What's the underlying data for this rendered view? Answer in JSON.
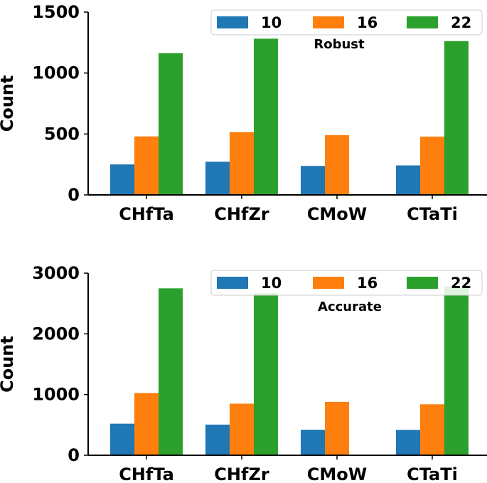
{
  "chart_data": [
    {
      "type": "bar",
      "title": "",
      "annotation": "Robust",
      "categories": [
        "CHfTa",
        "CHfZr",
        "CMoW",
        "CTaTi"
      ],
      "series": [
        {
          "name": "10",
          "color": "#1f77b4",
          "values": [
            250,
            272,
            238,
            242
          ]
        },
        {
          "name": "16",
          "color": "#ff7f0e",
          "values": [
            480,
            515,
            490,
            478
          ]
        },
        {
          "name": "22",
          "color": "#2ca02c",
          "values": [
            1163,
            1282,
            null,
            1262
          ]
        }
      ],
      "xlabel": "",
      "ylabel": "Count",
      "ylim": [
        0,
        1500
      ],
      "yticks": [
        0,
        500,
        1000,
        1500
      ],
      "legend": "top-right",
      "grid": false
    },
    {
      "type": "bar",
      "title": "",
      "annotation": "Accurate",
      "categories": [
        "CHfTa",
        "CHfZr",
        "CMoW",
        "CTaTi"
      ],
      "series": [
        {
          "name": "10",
          "color": "#1f77b4",
          "values": [
            520,
            505,
            420,
            418
          ]
        },
        {
          "name": "16",
          "color": "#ff7f0e",
          "values": [
            1025,
            850,
            880,
            840
          ]
        },
        {
          "name": "22",
          "color": "#2ca02c",
          "values": [
            2750,
            2670,
            null,
            2780
          ]
        }
      ],
      "xlabel": "",
      "ylabel": "Count",
      "ylim": [
        0,
        3000
      ],
      "yticks": [
        0,
        1000,
        2000,
        3000
      ],
      "legend": "top-right",
      "grid": false
    }
  ]
}
